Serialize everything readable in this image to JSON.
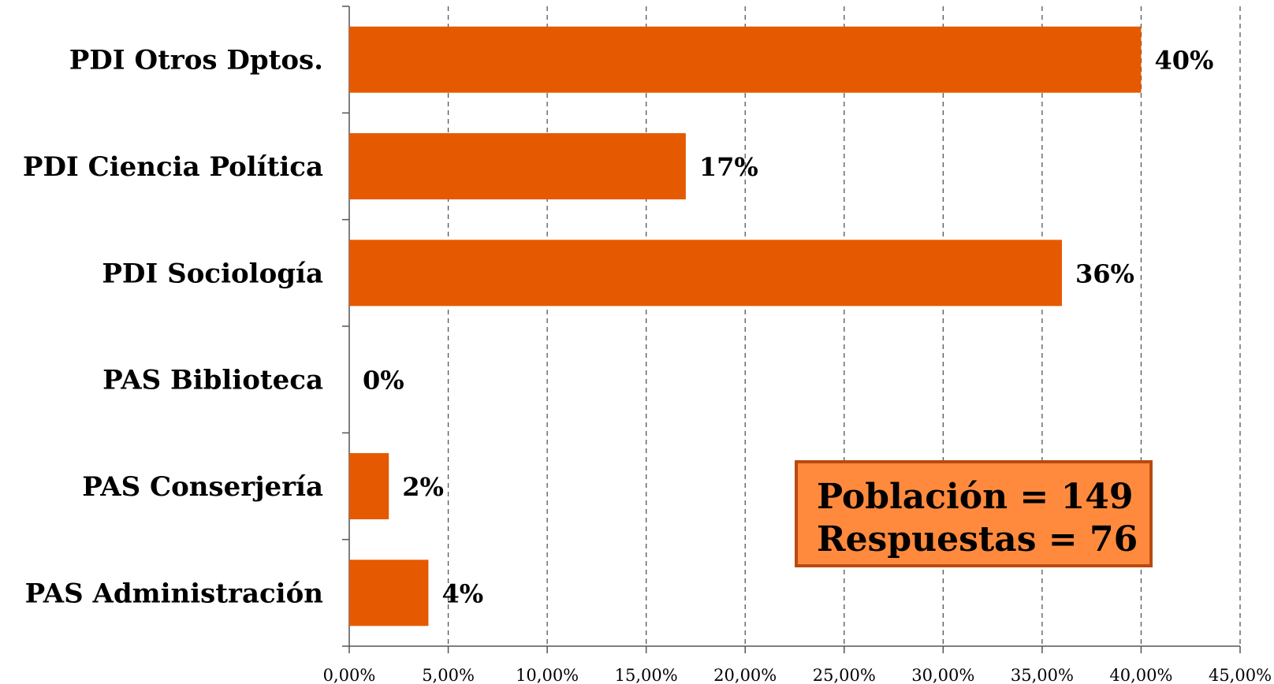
{
  "chart_data": {
    "type": "bar",
    "orientation": "horizontal",
    "categories": [
      "PDI Otros Dptos.",
      "PDI Ciencia Política",
      "PDI Sociología",
      "PAS Biblioteca",
      "PAS Conserjería",
      "PAS Administración"
    ],
    "values": [
      40,
      17,
      36,
      0,
      2,
      4
    ],
    "data_labels": [
      "40%",
      "17%",
      "36%",
      "0%",
      "2%",
      "4%"
    ],
    "xlim": [
      0,
      45
    ],
    "x_ticks": [
      0,
      5,
      10,
      15,
      20,
      25,
      30,
      35,
      40,
      45
    ],
    "x_tick_labels": [
      "0,00%",
      "5,00%",
      "10,00%",
      "15,00%",
      "20,00%",
      "25,00%",
      "30,00%",
      "35,00%",
      "40,00%",
      "45,00%"
    ],
    "grid": "vertical dashed",
    "bar_color": "#e55a00",
    "title": "",
    "xlabel": "",
    "ylabel": ""
  },
  "annotation": {
    "line1": "Población = 149",
    "line2": "Respuestas = 76",
    "fill_color": "#ff8a3d",
    "border_color": "#b84a12"
  }
}
